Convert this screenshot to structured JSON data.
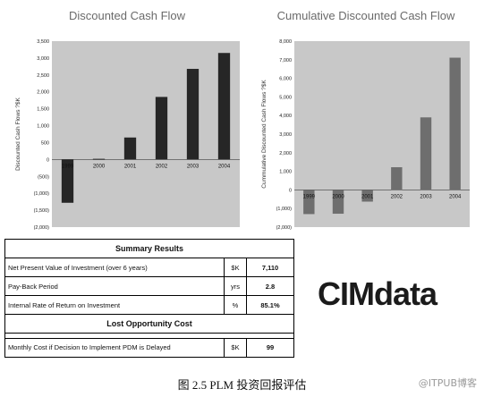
{
  "chart_data": [
    {
      "type": "bar",
      "title": "Discounted Cash Flow",
      "xlabel": "",
      "ylabel": "Discounted Cash Flows ?$K",
      "categories": [
        "1999",
        "2000",
        "2001",
        "2002",
        "2003",
        "2004"
      ],
      "values": [
        -1280,
        20,
        650,
        1850,
        2680,
        3150
      ],
      "ylim": [
        -2000,
        3500
      ],
      "yticks": [
        3500,
        3000,
        2500,
        2000,
        1500,
        1000,
        500,
        0,
        -500,
        -1000,
        -1500,
        -2000
      ],
      "ytick_labels": [
        "3,500",
        "3,000",
        "2,500",
        "2,000",
        "1,500",
        "1,000",
        "500",
        "0",
        "(500)",
        "(1,000)",
        "(1,500)",
        "(2,000)"
      ],
      "grid": false,
      "colors": {
        "bar": "#262626",
        "background": "#c8c8c8"
      }
    },
    {
      "type": "bar",
      "title": "Cumulative Discounted Cash Flow",
      "xlabel": "",
      "ylabel": "Cummulative Discounted Cash Flows ?$K",
      "categories": [
        "1999",
        "2000",
        "2001",
        "2002",
        "2003",
        "2004"
      ],
      "values": [
        -1300,
        -1280,
        -630,
        1220,
        3900,
        7110
      ],
      "ylim": [
        -2000,
        8000
      ],
      "yticks": [
        8000,
        7000,
        6000,
        5000,
        4000,
        3000,
        2000,
        1000,
        0,
        -1000,
        -2000
      ],
      "ytick_labels": [
        "8,000",
        "7,000",
        "6,000",
        "5,000",
        "4,000",
        "3,000",
        "2,000",
        "1,000",
        "0",
        "(1,000)",
        "(2,000)"
      ],
      "grid": false,
      "colors": {
        "bar": "#6e6e6e",
        "background": "#c8c8c8"
      }
    }
  ],
  "summary": {
    "title": "Summary Results",
    "rows": [
      {
        "label": "Net Present Value of Investment (over 6 years)",
        "unit": "$K",
        "value": "7,110"
      },
      {
        "label": "Pay-Back Period",
        "unit": "yrs",
        "value": "2.8"
      },
      {
        "label": "Internal Rate of Return on Investment",
        "unit": "%",
        "value": "85.1%"
      }
    ],
    "lost_title": "Lost Opportunity Cost",
    "lost_row": {
      "label": "Monthly Cost if Decision to Implement PDM is Delayed",
      "unit": "$K",
      "value": "99"
    }
  },
  "logo": {
    "text": "CIMdata"
  },
  "caption": "图 2.5   PLM 投资回报评估",
  "watermark": "@ITPUB博客"
}
